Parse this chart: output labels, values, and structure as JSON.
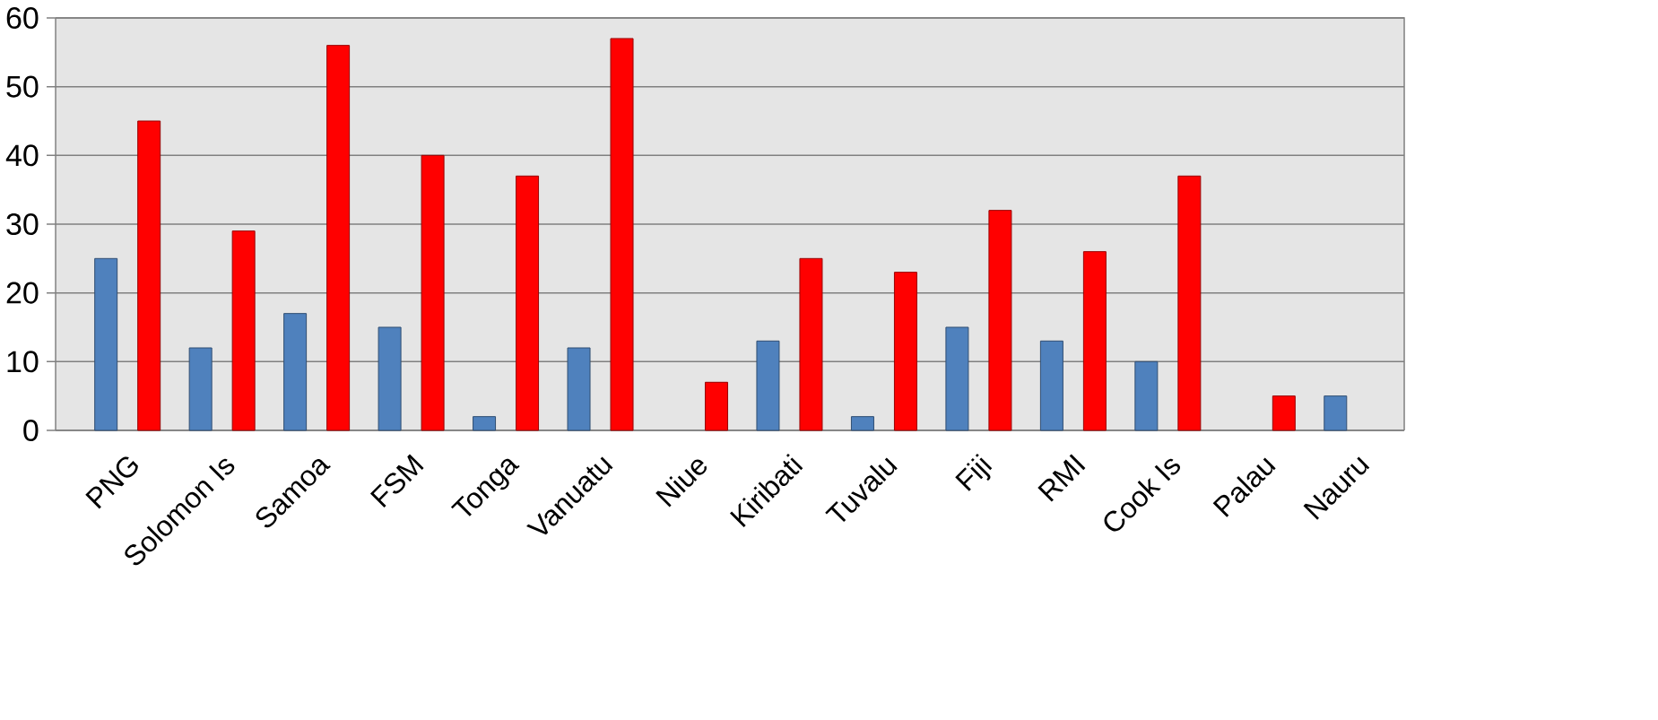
{
  "chart_data": {
    "type": "bar",
    "categories": [
      "PNG",
      "Solomon Is",
      "Samoa",
      "FSM",
      "Tonga",
      "Vanuatu",
      "Niue",
      "Kiribati",
      "Tuvalu",
      "Fiji",
      "RMI",
      "Cook Is",
      "Palau",
      "Nauru"
    ],
    "series": [
      {
        "color": "#4f81bd",
        "values": [
          25,
          12,
          17,
          15,
          2,
          12,
          null,
          13,
          2,
          15,
          13,
          10,
          null,
          5
        ]
      },
      {
        "color": "#ff0000",
        "values": [
          45,
          29,
          56,
          40,
          37,
          57,
          7,
          25,
          23,
          32,
          26,
          37,
          5,
          null
        ]
      }
    ],
    "ylim": [
      0,
      60
    ],
    "yticks": [
      0,
      10,
      20,
      30,
      40,
      50,
      60
    ],
    "grid": "y"
  }
}
